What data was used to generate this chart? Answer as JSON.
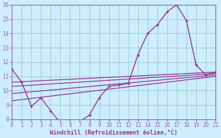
{
  "background_color": "#cceeff",
  "line_color": "#993399",
  "grid_color": "#99cccc",
  "axis_color": "#9966aa",
  "xlabel": "Windchill (Refroidissement éolien,°C)",
  "xlabel_color": "#993399",
  "ylim": [
    8,
    16
  ],
  "xlim": [
    0,
    21
  ],
  "yticks": [
    8,
    9,
    10,
    11,
    12,
    13,
    14,
    15,
    16
  ],
  "xticks": [
    0,
    1,
    2,
    3,
    4,
    5,
    6,
    7,
    8,
    9,
    10,
    11,
    12,
    13,
    14,
    15,
    16,
    17,
    18,
    19,
    20,
    21
  ],
  "curve1_x": [
    0,
    1,
    2,
    3,
    4,
    5,
    6,
    7,
    8,
    9,
    10,
    11,
    12,
    13,
    14,
    15,
    16,
    17,
    18,
    19,
    20,
    21
  ],
  "curve1_y": [
    11.5,
    10.6,
    8.9,
    9.5,
    8.6,
    7.75,
    7.85,
    7.85,
    8.3,
    9.5,
    10.3,
    10.4,
    10.5,
    12.5,
    14.0,
    14.6,
    15.5,
    16.0,
    14.9,
    11.8,
    11.1,
    11.3
  ],
  "line2_x": [
    0,
    21
  ],
  "line2_y": [
    10.6,
    11.3
  ],
  "line3_x": [
    0,
    21
  ],
  "line3_y": [
    10.3,
    11.2
  ],
  "line4_x": [
    0,
    21
  ],
  "line4_y": [
    9.8,
    11.1
  ],
  "line5_x": [
    0,
    21
  ],
  "line5_y": [
    9.3,
    11.0
  ]
}
